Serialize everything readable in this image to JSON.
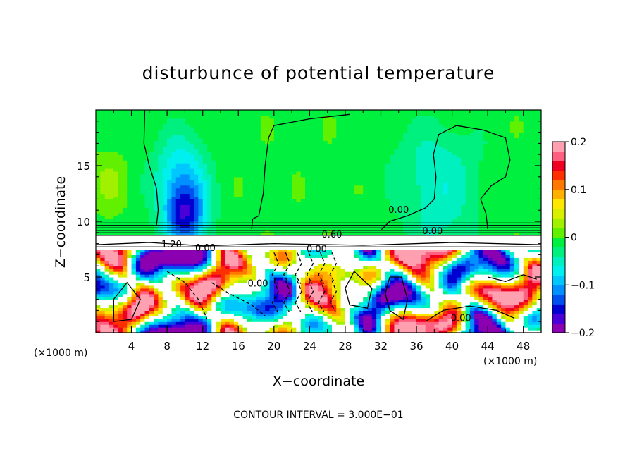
{
  "chart_data": {
    "type": "heatmap",
    "title": "disturbunce of potential temperature",
    "xlabel": "X−coordinate",
    "ylabel": "Z−coordinate",
    "x_unit_left": "(×1000 m)",
    "x_unit_right": "(×1000 m)",
    "footer": "CONTOUR INTERVAL = 3.000E−01",
    "xlim": [
      0,
      50
    ],
    "ylim": [
      0,
      20
    ],
    "x_ticks": [
      4,
      8,
      12,
      16,
      20,
      24,
      28,
      32,
      36,
      40,
      44,
      48
    ],
    "y_ticks": [
      5,
      10,
      15
    ],
    "colorbar": {
      "range": [
        -0.2,
        0.2
      ],
      "tick_values": [
        0.2,
        0.1,
        0,
        -0.1,
        -0.2
      ],
      "tick_labels": [
        "0.2",
        "0.1",
        "0",
        "−0.1",
        "−0.2"
      ],
      "colors": [
        "#8B00B0",
        "#4B00D8",
        "#0000D0",
        "#0050F0",
        "#0090FF",
        "#00C8FF",
        "#00F0F0",
        "#00F0C0",
        "#00F080",
        "#00F040",
        "#60F000",
        "#A0F000",
        "#D8F000",
        "#FFE800",
        "#FFB000",
        "#FF7800",
        "#FF3000",
        "#F00020",
        "#FF6080",
        "#FFA0B0"
      ]
    },
    "contour_labels": [
      {
        "text": "0.00",
        "x": 34,
        "y": 11
      },
      {
        "text": "0.60",
        "x": 26.5,
        "y": 8.8
      },
      {
        "text": "0.00",
        "x": 37.8,
        "y": 9.1
      },
      {
        "text": "1.20",
        "x": 8.5,
        "y": 7.9
      },
      {
        "text": "0.00",
        "x": 12.3,
        "y": 7.6
      },
      {
        "text": "0.00",
        "x": 24.8,
        "y": 7.5
      },
      {
        "text": "0.00",
        "x": 18.2,
        "y": 4.4
      },
      {
        "text": "0.00",
        "x": 41,
        "y": 1.3
      }
    ]
  }
}
